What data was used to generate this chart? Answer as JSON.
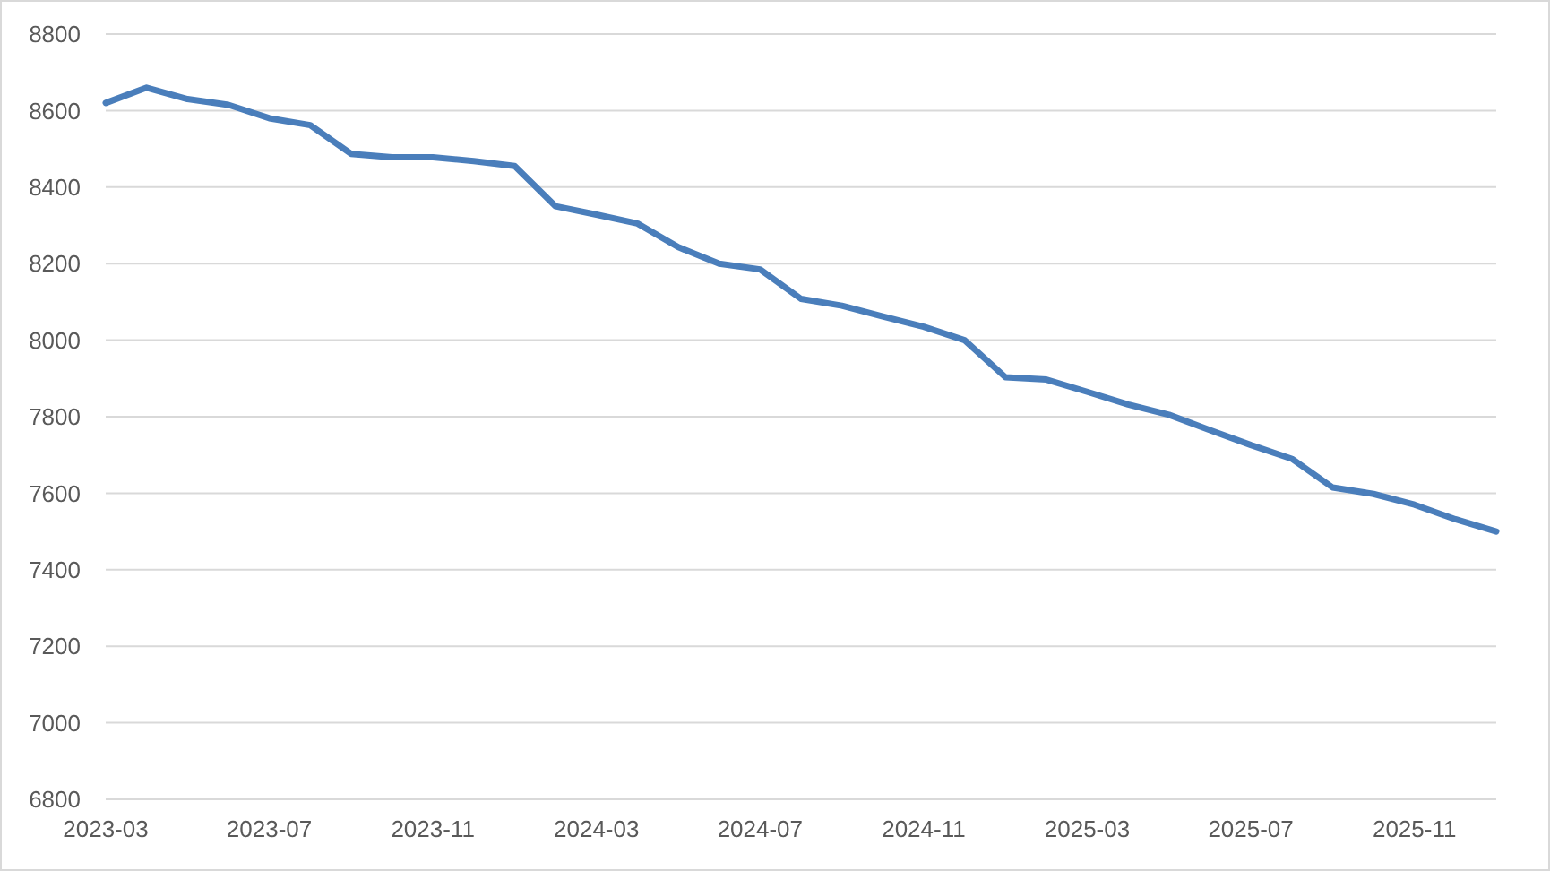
{
  "chart_data": {
    "type": "line",
    "categories": [
      "2023-03",
      null,
      null,
      null,
      "2023-07",
      null,
      null,
      null,
      "2023-11",
      null,
      null,
      null,
      "2024-03",
      null,
      null,
      null,
      "2024-07",
      null,
      null,
      null,
      "2024-11",
      null,
      null,
      null,
      "2025-03",
      null,
      null,
      null,
      "2025-07",
      null,
      null,
      null,
      "2025-11",
      null,
      null
    ],
    "values": [
      8620,
      8660,
      8630,
      8615,
      8580,
      8562,
      8487,
      8478,
      8478,
      8468,
      8455,
      8350,
      8328,
      8305,
      8243,
      8200,
      8185,
      8108,
      8090,
      8062,
      8035,
      8000,
      7903,
      7897,
      7865,
      7832,
      7805,
      7765,
      7726,
      7690,
      7615,
      7598,
      7570,
      7532,
      7500
    ],
    "color": "#4a7ebb",
    "ylim": [
      6800,
      8800
    ],
    "yticks": [
      6800,
      7000,
      7200,
      7400,
      7600,
      7800,
      8000,
      8200,
      8400,
      8600,
      8800
    ],
    "grid": "y"
  }
}
